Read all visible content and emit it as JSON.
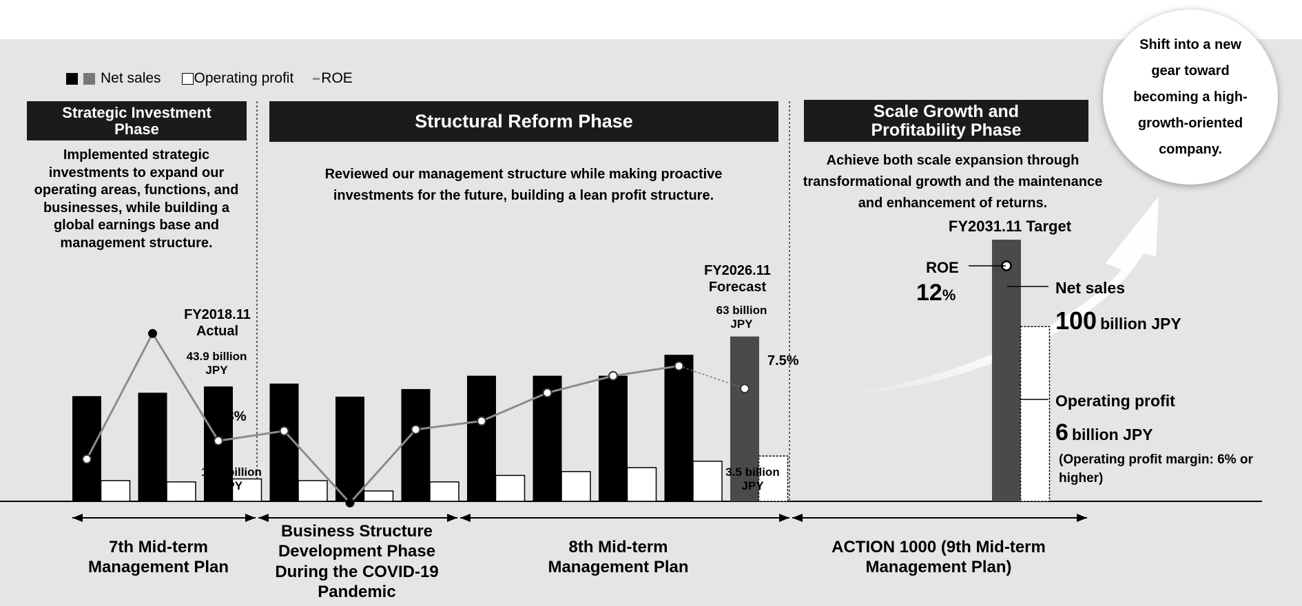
{
  "legend": {
    "net_sales": "Net sales",
    "operating_profit": "Operating profit",
    "roe": "ROE"
  },
  "phases": {
    "strategic": {
      "title": "Strategic Investment Phase",
      "description": "Implemented strategic investments to expand our operating areas, functions, and businesses, while building a global earnings base and management structure."
    },
    "structural": {
      "title": "Structural Reform Phase",
      "description": "Reviewed our management structure while making proactive investments for the future, building a lean profit structure."
    },
    "scale": {
      "title": "Scale Growth and Profitability Phase",
      "description": "Achieve both scale expansion through transformational growth and the maintenance and enhancement of returns."
    }
  },
  "bubble_text": "Shift into a new gear toward becoming a high-growth-oriented company.",
  "annotations": {
    "fy2018_label": "FY2018.11 Actual",
    "fy2018_sales": "43.9 billion JPY",
    "fy2018_roe": "3.8%",
    "fy2018_op": "1.73 billion JPY",
    "fy2026_label": "FY2026.11 Forecast",
    "fy2026_sales": "63 billion JPY",
    "fy2026_roe": "7.5%",
    "fy2026_op": "3.5 billion JPY",
    "fy2031_label": "FY2031.11 Target",
    "target_roe_label": "ROE",
    "target_roe_value": "12",
    "target_roe_unit": "%",
    "target_sales_label": "Net sales",
    "target_sales_value": "100",
    "target_sales_unit": "billion JPY",
    "target_op_label": "Operating profit",
    "target_op_value": "6",
    "target_op_unit": "billion JPY",
    "target_op_margin": "(Operating profit margin: 6% or higher)"
  },
  "plans": {
    "p7": "7th Mid-term Management Plan",
    "covid": "Business Structure Development Phase During the COVID-19 Pandemic",
    "p8": "8th Mid-term Management Plan",
    "p9": "ACTION 1000 (9th Mid-term Management Plan)"
  },
  "colors": {
    "actual_sales": "#000000",
    "forecast_sales": "#4a4a4a",
    "profit": "#ffffff",
    "roe_line": "#8c8c8c",
    "panel": "#e5e5e5",
    "header": "#1b1b1b"
  },
  "chart_data": {
    "type": "bar",
    "units": "billion JPY",
    "series": [
      {
        "name": "Net sales",
        "values": [
          40.2,
          41.5,
          43.9,
          45.0,
          40.0,
          42.9,
          48.0,
          48.0,
          48.0,
          56.0,
          63.0
        ]
      },
      {
        "name": "Operating profit",
        "values": [
          1.6,
          1.5,
          1.73,
          1.6,
          0.8,
          1.5,
          2.0,
          2.3,
          2.6,
          3.1,
          3.5
        ]
      },
      {
        "name": "ROE",
        "values": [
          2.5,
          11.4,
          3.8,
          4.5,
          -0.6,
          4.6,
          5.2,
          7.2,
          8.4,
          9.1,
          7.5
        ]
      }
    ],
    "target": {
      "net_sales": 100,
      "operating_profit": 6,
      "roe": 12
    }
  }
}
